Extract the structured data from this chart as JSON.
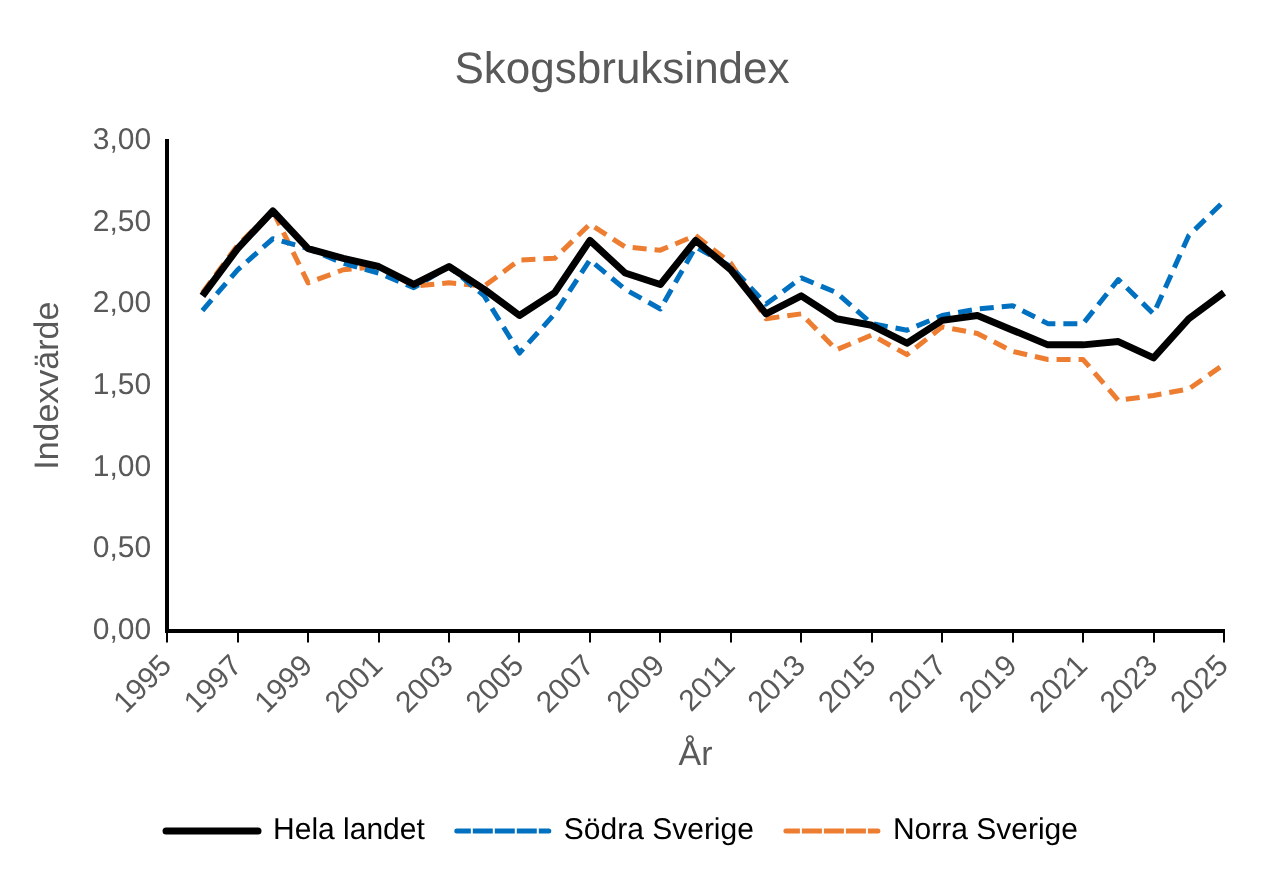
{
  "chart_data": {
    "type": "line",
    "title": "Skogsbruksindex",
    "xlabel": "År",
    "ylabel": "Indexvärde",
    "categories": [
      "1995",
      null,
      "1997",
      null,
      "1999",
      null,
      "2001",
      null,
      "2003",
      null,
      "2005",
      null,
      "2007",
      null,
      "2009",
      null,
      "2011",
      null,
      "2013",
      null,
      "2015",
      null,
      "2017",
      null,
      "2019",
      null,
      "2021",
      null,
      "2023",
      null,
      "2025"
    ],
    "series": [
      {
        "name": "Hela landet",
        "color": "#000000",
        "line_style": "solid",
        "values": [
          null,
          2.05,
          2.34,
          2.57,
          2.34,
          2.28,
          2.23,
          2.12,
          2.23,
          2.09,
          1.93,
          2.07,
          2.39,
          2.19,
          2.12,
          2.39,
          2.21,
          1.94,
          2.05,
          1.91,
          1.87,
          1.76,
          1.9,
          1.93,
          1.84,
          1.75,
          1.75,
          1.77,
          1.67,
          1.91,
          2.07
        ]
      },
      {
        "name": "Södra Sverige",
        "color": "#0070c0",
        "line_style": "dashed",
        "values": [
          null,
          1.96,
          2.21,
          2.4,
          2.34,
          2.25,
          2.19,
          2.1,
          2.23,
          2.05,
          1.7,
          1.94,
          2.27,
          2.09,
          1.97,
          2.35,
          2.23,
          2.0,
          2.16,
          2.07,
          1.88,
          1.84,
          1.93,
          1.97,
          1.99,
          1.88,
          1.88,
          2.15,
          1.94,
          2.42,
          2.63
        ]
      },
      {
        "name": "Norra Sverige",
        "color": "#ed7d31",
        "line_style": "dashed",
        "values": [
          null,
          2.07,
          2.36,
          2.57,
          2.13,
          2.21,
          2.23,
          2.11,
          2.13,
          2.11,
          2.27,
          2.28,
          2.49,
          2.35,
          2.33,
          2.42,
          2.25,
          1.91,
          1.94,
          1.72,
          1.81,
          1.69,
          1.86,
          1.82,
          1.71,
          1.66,
          1.66,
          1.41,
          1.44,
          1.48,
          1.63
        ]
      }
    ],
    "ylim": [
      0,
      3
    ],
    "yticks": [
      {
        "value": 0,
        "label": "0,00"
      },
      {
        "value": 0.5,
        "label": "0,50"
      },
      {
        "value": 1,
        "label": "1,00"
      },
      {
        "value": 1.5,
        "label": "1,50"
      },
      {
        "value": 2,
        "label": "2,00"
      },
      {
        "value": 2.5,
        "label": "2,50"
      },
      {
        "value": 3,
        "label": "3,00"
      }
    ],
    "grid": false,
    "legend": "bottom",
    "marker": "none"
  }
}
